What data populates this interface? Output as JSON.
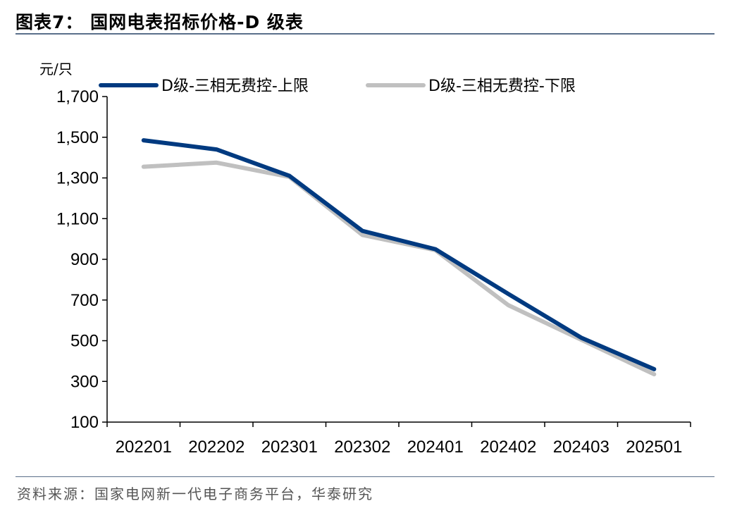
{
  "header": {
    "title": "图表7：  国网电表招标价格-D 级表"
  },
  "footer": {
    "source": "资料来源：国家电网新一代电子商务平台，华泰研究"
  },
  "chart_data": {
    "type": "line",
    "ylabel": "元/只",
    "ylim": [
      100,
      1700
    ],
    "yticks": [
      100,
      300,
      500,
      700,
      900,
      1100,
      1300,
      1500,
      1700
    ],
    "ytick_labels": [
      "100",
      "300",
      "500",
      "700",
      "900",
      "1,100",
      "1,300",
      "1,500",
      "1,700"
    ],
    "categories": [
      "202201",
      "202202",
      "202301",
      "202302",
      "202401",
      "202402",
      "202403",
      "202501"
    ],
    "legend_position": "top",
    "grid": false,
    "series": [
      {
        "name": "D级-三相无费控-上限",
        "color": "#003a80",
        "values": [
          1485,
          1440,
          1310,
          1040,
          950,
          730,
          515,
          360
        ]
      },
      {
        "name": "D级-三相无费控-下限",
        "color": "#c0c0c0",
        "values": [
          1355,
          1375,
          1305,
          1020,
          945,
          675,
          505,
          335
        ]
      }
    ]
  }
}
